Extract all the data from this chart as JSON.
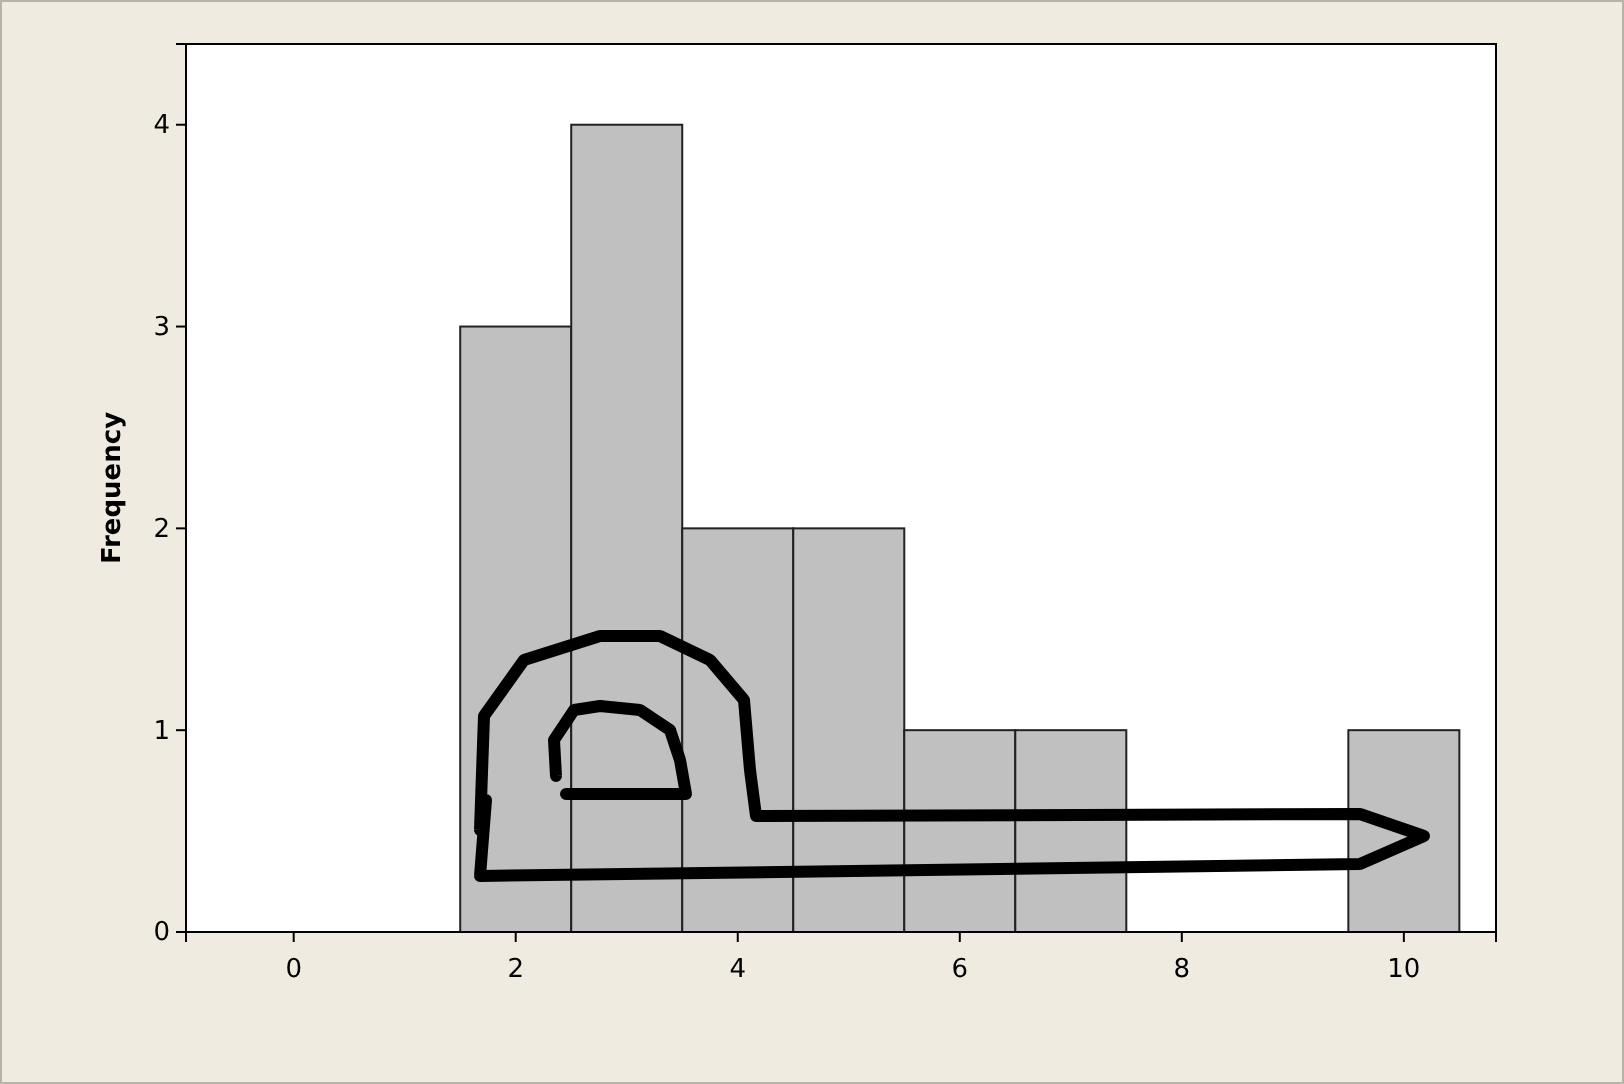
{
  "chart_data": {
    "type": "histogram",
    "ylabel": "Frequency",
    "bins": [
      1.5,
      2.5,
      3.5,
      4.5,
      5.5,
      6.5,
      7.5,
      8.5,
      9.5,
      10.5
    ],
    "values": [
      3,
      4,
      2,
      2,
      1,
      1,
      0,
      0,
      1
    ],
    "color": "#c0c0c0",
    "xlim": [
      -0.97,
      10.83
    ],
    "xticks": [
      0,
      2,
      4,
      6,
      8,
      10
    ],
    "ylim": [
      0,
      4.4
    ],
    "yticks": [
      0,
      1,
      2,
      3,
      4
    ],
    "grid": false
  }
}
